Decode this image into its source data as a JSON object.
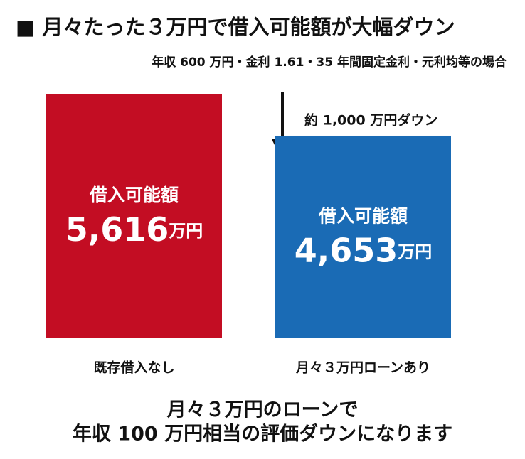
{
  "chart_data": {
    "type": "bar",
    "title": "■ 月々たった３万円で借入可能額が大幅ダウン",
    "subtitle": "年収 600 万円・金利 1.61・35 年間固定金利・元利均等の場合",
    "categories": [
      "既存借入なし",
      "月々３万円ローンあり"
    ],
    "values": [
      5616,
      4653
    ],
    "value_labels": [
      "5,616",
      "4,653"
    ],
    "unit": "万円",
    "bar_label": "借入可能額",
    "colors": [
      "#c30d23",
      "#1a6bb5"
    ],
    "annotation": "約 1,000 万円ダウン",
    "footer": [
      "月々３万円のローンで",
      "年収 100 万円相当の評価ダウンになります"
    ]
  }
}
